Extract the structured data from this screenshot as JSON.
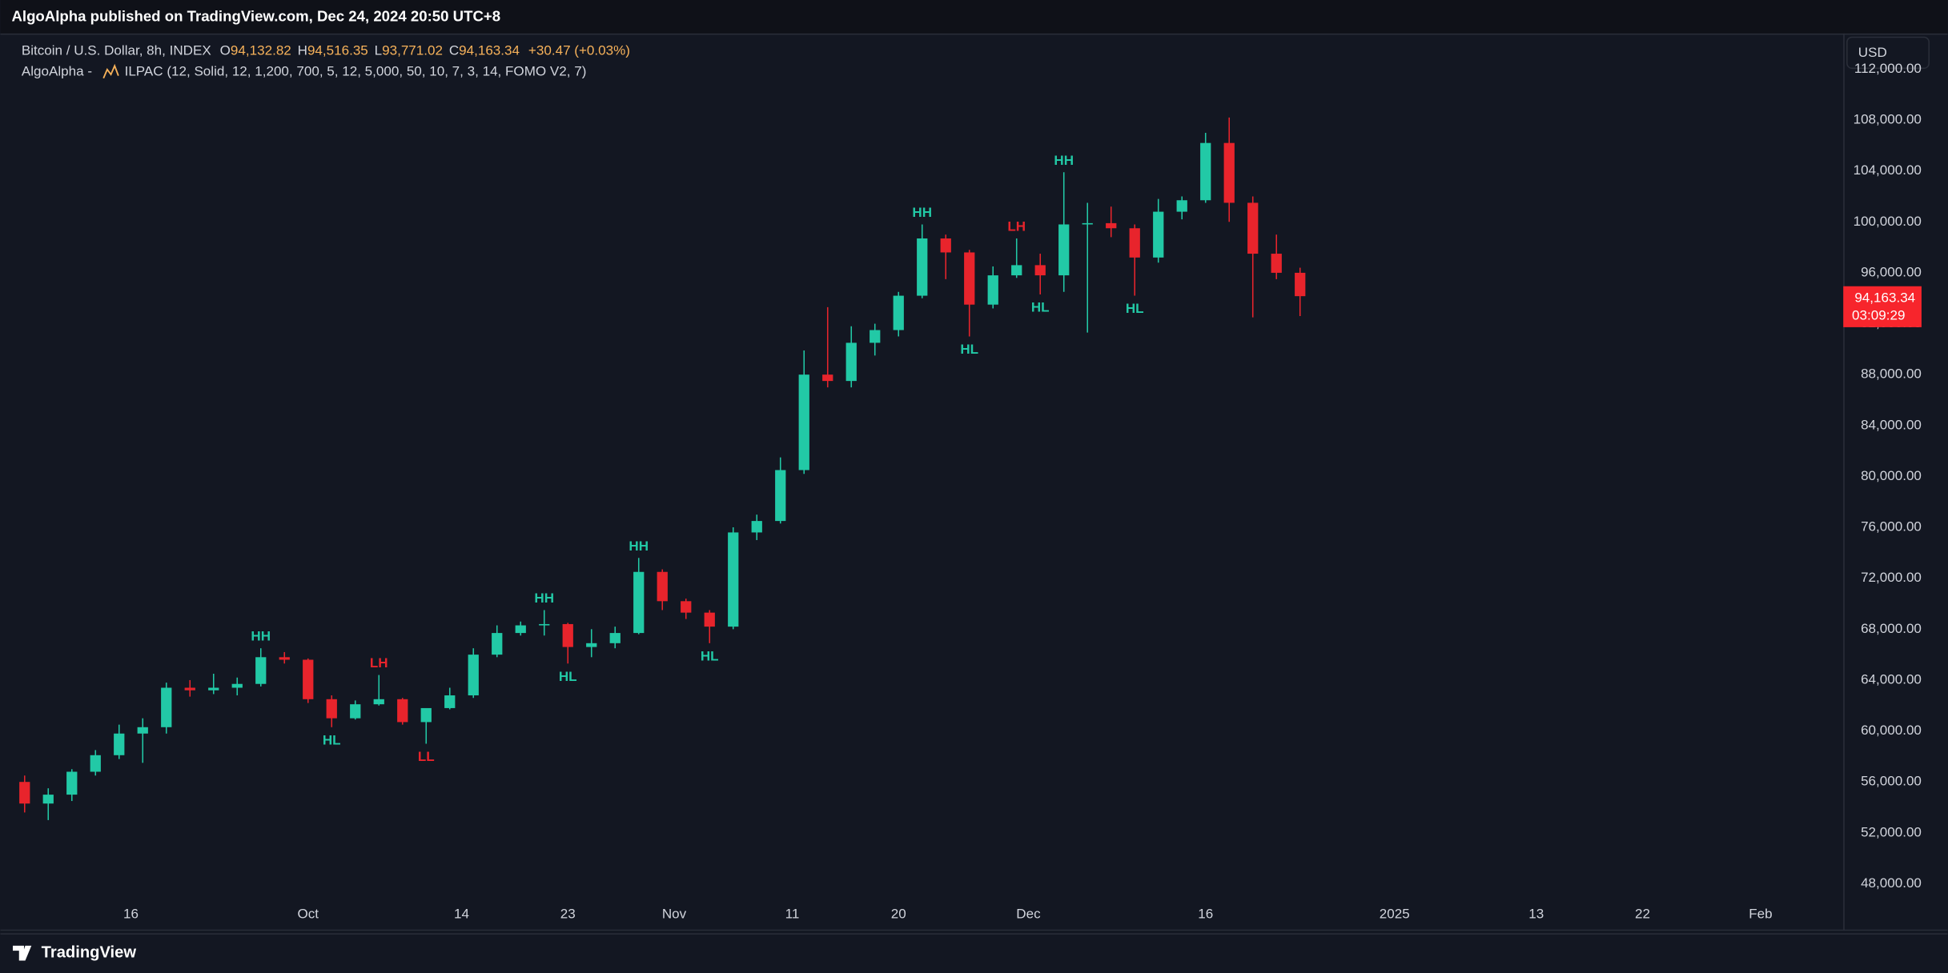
{
  "publisher": "AlgoAlpha published on TradingView.com, Dec 24, 2024 20:50 UTC+8",
  "legend": {
    "symbol": "Bitcoin / U.S. Dollar, 8h, INDEX",
    "ohlc_letters": [
      "O",
      "H",
      "L",
      "C"
    ],
    "ohlc_values": [
      "94,132.82",
      "94,516.35",
      "93,771.02",
      "94,163.34"
    ],
    "change": "+30.47 (+0.03%)",
    "indicator_author": "AlgoAlpha -",
    "indicator": "ILPAC (12, Solid, 12, 1,200, 700, 5, 12, 5,000, 50, 10, 7, 3, 14, FOMO V2, 7)"
  },
  "currency": "USD",
  "brand": "TradingView",
  "chart_data": {
    "type": "candlestick",
    "up_color": "#22c9a6",
    "down_color": "#e8242c",
    "grid": false,
    "x": [
      "2024-09-07",
      "2024-09-09",
      "2024-09-11",
      "2024-09-13",
      "2024-09-15",
      "2024-09-17",
      "2024-09-19",
      "2024-09-21",
      "2024-09-23",
      "2024-09-25",
      "2024-09-27",
      "2024-09-29",
      "2024-10-01",
      "2024-10-03",
      "2024-10-05",
      "2024-10-07",
      "2024-10-09",
      "2024-10-11",
      "2024-10-13",
      "2024-10-15",
      "2024-10-17",
      "2024-10-19",
      "2024-10-21",
      "2024-10-23",
      "2024-10-25",
      "2024-10-27",
      "2024-10-29",
      "2024-10-31",
      "2024-11-02",
      "2024-11-04",
      "2024-11-06",
      "2024-11-08",
      "2024-11-10",
      "2024-11-12",
      "2024-11-14",
      "2024-11-16",
      "2024-11-18",
      "2024-11-20",
      "2024-11-22",
      "2024-11-24",
      "2024-11-26",
      "2024-11-28",
      "2024-11-30",
      "2024-12-02",
      "2024-12-04",
      "2024-12-06",
      "2024-12-08",
      "2024-12-10",
      "2024-12-12",
      "2024-12-14",
      "2024-12-16",
      "2024-12-18",
      "2024-12-20",
      "2024-12-22",
      "2024-12-24"
    ],
    "open": [
      56000,
      54300,
      55000,
      56800,
      58100,
      59800,
      60300,
      63400,
      63200,
      63400,
      63700,
      65800,
      65600,
      62500,
      61000,
      62100,
      62500,
      60700,
      61800,
      62800,
      66000,
      67700,
      68300,
      68400,
      66600,
      66900,
      67700,
      72500,
      70200,
      69300,
      68200,
      75600,
      76500,
      80500,
      88000,
      87500,
      90500,
      91500,
      94200,
      98700,
      97600,
      93500,
      95800,
      96600,
      95800,
      99800,
      99900,
      99500,
      97200,
      100800,
      101700,
      106200,
      101500,
      97500,
      96000
    ],
    "high": [
      56500,
      55500,
      57000,
      58500,
      60500,
      61000,
      63800,
      64000,
      64500,
      64200,
      66500,
      66200,
      65700,
      62800,
      62400,
      64400,
      62600,
      61500,
      63400,
      66500,
      68300,
      68600,
      69500,
      68500,
      68000,
      68200,
      73600,
      72700,
      70400,
      69500,
      76000,
      77000,
      81500,
      89900,
      93300,
      91800,
      92000,
      94500,
      99800,
      99000,
      97800,
      96500,
      98700,
      97500,
      103900,
      101500,
      101200,
      99800,
      101800,
      102000,
      107000,
      108200,
      102000,
      99000,
      96400
    ],
    "low": [
      53600,
      53000,
      54500,
      56500,
      57800,
      57500,
      59800,
      62700,
      62900,
      62800,
      63500,
      65300,
      62200,
      60300,
      60900,
      62000,
      60500,
      59000,
      61700,
      62600,
      65800,
      67500,
      67500,
      65300,
      65800,
      66500,
      67600,
      69500,
      68800,
      66900,
      68000,
      75000,
      76300,
      80200,
      87000,
      87000,
      89500,
      91000,
      94000,
      95500,
      91000,
      93200,
      95600,
      94300,
      94500,
      91300,
      98800,
      94200,
      96800,
      100200,
      101500,
      100000,
      92500,
      95500,
      92600
    ],
    "close": [
      54300,
      55000,
      56800,
      58100,
      59800,
      60300,
      63400,
      63200,
      63400,
      63700,
      65800,
      65600,
      62500,
      61000,
      62100,
      62500,
      60700,
      61800,
      62800,
      66000,
      67700,
      68300,
      68400,
      66600,
      66900,
      67700,
      72500,
      70200,
      69300,
      68200,
      75600,
      76500,
      80500,
      88000,
      87500,
      90500,
      91500,
      94200,
      98700,
      97600,
      93500,
      95800,
      96600,
      95800,
      99800,
      99900,
      99500,
      97200,
      100800,
      101700,
      106200,
      101500,
      97500,
      96000,
      94163.34
    ],
    "xlim": [
      "2024-09-06",
      "2025-02-08"
    ],
    "xticks": [
      {
        "value": "2024-09-16",
        "label": "16"
      },
      {
        "value": "2024-10-01",
        "label": "Oct"
      },
      {
        "value": "2024-10-14",
        "label": "14"
      },
      {
        "value": "2024-10-23",
        "label": "23"
      },
      {
        "value": "2024-11-01",
        "label": "Nov"
      },
      {
        "value": "2024-11-11",
        "label": "11"
      },
      {
        "value": "2024-11-20",
        "label": "20"
      },
      {
        "value": "2024-12-01",
        "label": "Dec"
      },
      {
        "value": "2024-12-16",
        "label": "16"
      },
      {
        "value": "2025-01-01",
        "label": "2025"
      },
      {
        "value": "2025-01-13",
        "label": "13"
      },
      {
        "value": "2025-01-22",
        "label": "22"
      },
      {
        "value": "2025-02-01",
        "label": "Feb"
      }
    ],
    "ylim": [
      44400,
      114800
    ],
    "yticks": [
      {
        "value": 48000,
        "label": "48,000.00"
      },
      {
        "value": 52000,
        "label": "52,000.00"
      },
      {
        "value": 56000,
        "label": "56,000.00"
      },
      {
        "value": 60000,
        "label": "60,000.00"
      },
      {
        "value": 64000,
        "label": "64,000.00"
      },
      {
        "value": 68000,
        "label": "68,000.00"
      },
      {
        "value": 72000,
        "label": "72,000.00"
      },
      {
        "value": 76000,
        "label": "76,000.00"
      },
      {
        "value": 80000,
        "label": "80,000.00"
      },
      {
        "value": 84000,
        "label": "84,000.00"
      },
      {
        "value": 88000,
        "label": "88,000.00"
      },
      {
        "value": 92000,
        "label": "92,000.00"
      },
      {
        "value": 96000,
        "label": "96,000.00"
      },
      {
        "value": 100000,
        "label": "100,000.00"
      },
      {
        "value": 104000,
        "label": "104,000.00"
      },
      {
        "value": 108000,
        "label": "108,000.00"
      },
      {
        "value": 112000,
        "label": "112,000.00"
      }
    ],
    "annotations": [
      {
        "text": "HH",
        "x": "2024-09-27",
        "y": 66500,
        "color": "#22c9a6"
      },
      {
        "text": "HL",
        "x": "2024-10-03",
        "y": 60300,
        "color": "#22c9a6"
      },
      {
        "text": "LH",
        "x": "2024-10-07",
        "y": 64400,
        "color": "#e8242c"
      },
      {
        "text": "LL",
        "x": "2024-10-11",
        "y": 59000,
        "color": "#e8242c"
      },
      {
        "text": "HH",
        "x": "2024-10-21",
        "y": 69500,
        "color": "#22c9a6"
      },
      {
        "text": "HL",
        "x": "2024-10-23",
        "y": 65300,
        "color": "#22c9a6"
      },
      {
        "text": "HH",
        "x": "2024-10-29",
        "y": 73600,
        "color": "#22c9a6"
      },
      {
        "text": "HL",
        "x": "2024-11-04",
        "y": 66900,
        "color": "#22c9a6"
      },
      {
        "text": "HH",
        "x": "2024-11-22",
        "y": 99800,
        "color": "#22c9a6"
      },
      {
        "text": "HL",
        "x": "2024-11-26",
        "y": 91000,
        "color": "#22c9a6"
      },
      {
        "text": "LH",
        "x": "2024-11-30",
        "y": 98700,
        "color": "#e8242c"
      },
      {
        "text": "HL",
        "x": "2024-12-02",
        "y": 94300,
        "color": "#22c9a6"
      },
      {
        "text": "HH",
        "x": "2024-12-04",
        "y": 103900,
        "color": "#22c9a6"
      },
      {
        "text": "HL",
        "x": "2024-12-10",
        "y": 94200,
        "color": "#22c9a6"
      }
    ],
    "last_price": {
      "value": 94163.34,
      "label": "94,163.34",
      "countdown": "03:09:29",
      "color": "#f7252c"
    }
  }
}
